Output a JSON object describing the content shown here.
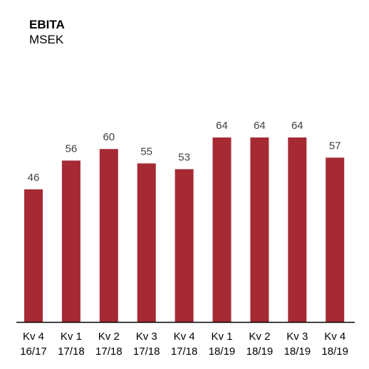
{
  "chart_data": {
    "type": "bar",
    "title": "EBITA",
    "subtitle": "MSEK",
    "categories": [
      [
        "Kv 4",
        "16/17"
      ],
      [
        "Kv 1",
        "17/18"
      ],
      [
        "Kv 2",
        "17/18"
      ],
      [
        "Kv 3",
        "17/18"
      ],
      [
        "Kv 4",
        "17/18"
      ],
      [
        "Kv 1",
        "18/19"
      ],
      [
        "Kv 2",
        "18/19"
      ],
      [
        "Kv 3",
        "18/19"
      ],
      [
        "Kv 4",
        "18/19"
      ]
    ],
    "values": [
      46,
      56,
      60,
      55,
      53,
      64,
      64,
      64,
      57
    ],
    "ylim": [
      0,
      64
    ],
    "grid": false,
    "colors": {
      "bar": "#a52a34",
      "label": "#404040",
      "axis": "#000000"
    }
  }
}
